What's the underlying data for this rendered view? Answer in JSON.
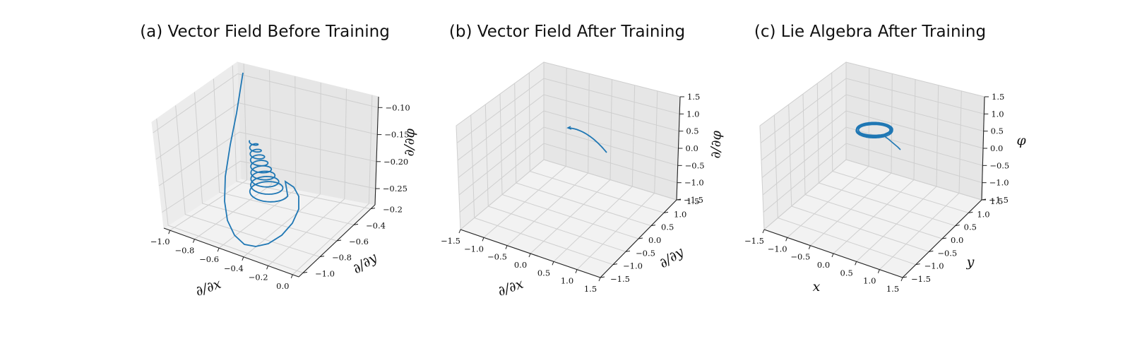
{
  "chart_data": [
    {
      "type": "line3d",
      "title": "(a) Vector Field Before Training",
      "xlabel": "∂/∂x",
      "ylabel": "∂/∂y",
      "zlabel": "∂/∂φ",
      "xticks": [
        "−1.0",
        "−0.8",
        "−0.6",
        "−0.4",
        "−0.2",
        "0.0"
      ],
      "yticks": [
        "−1.0",
        "−0.8",
        "−0.6",
        "−0.4",
        "−0.2"
      ],
      "zticks": [
        "−0.25",
        "−0.20",
        "−0.15",
        "−0.10"
      ],
      "xlim": [
        -1.05,
        0.05
      ],
      "ylim": [
        -1.05,
        -0.15
      ],
      "zlim": [
        -0.28,
        -0.08
      ],
      "grid": true,
      "series_color": "#1f77b4",
      "curve": "spiral trajectory descending from φ≈−0.08 toward φ≈−0.25 around (x≈−0.5, y≈−0.6)"
    },
    {
      "type": "line3d",
      "title": "(b) Vector Field After Training",
      "xlabel": "∂/∂x",
      "ylabel": "∂/∂y",
      "zlabel": "∂/∂φ",
      "xticks": [
        "−1.5",
        "−1.0",
        "−0.5",
        "0.0",
        "0.5",
        "1.0",
        "1.5"
      ],
      "yticks": [
        "−1.5",
        "−1.0",
        "−0.5",
        "0.0",
        "0.5",
        "1.0",
        "1.5"
      ],
      "zticks": [
        "−1.5",
        "−1.0",
        "−0.5",
        "0.0",
        "0.5",
        "1.0",
        "1.5"
      ],
      "xlim": [
        -1.5,
        1.5
      ],
      "ylim": [
        -1.5,
        1.5
      ],
      "zlim": [
        -1.5,
        1.5
      ],
      "grid": true,
      "series_color": "#1f77b4",
      "curve": "short arc near the origin"
    },
    {
      "type": "line3d",
      "title": "(c) Lie Algebra After Training",
      "xlabel": "x",
      "ylabel": "y",
      "zlabel": "φ",
      "xticks": [
        "−1.5",
        "−1.0",
        "−0.5",
        "0.0",
        "0.5",
        "1.0",
        "1.5"
      ],
      "yticks": [
        "−1.5",
        "−1.0",
        "−0.5",
        "0.0",
        "0.5",
        "1.0",
        "1.5"
      ],
      "zticks": [
        "−1.5",
        "−1.0",
        "−0.5",
        "0.0",
        "0.5",
        "1.0",
        "1.5"
      ],
      "xlim": [
        -1.5,
        1.5
      ],
      "ylim": [
        -1.5,
        1.5
      ],
      "zlim": [
        -1.5,
        1.5
      ],
      "grid": true,
      "series_color": "#1f77b4",
      "curve": "closed loops (limit cycle) around φ≈0.7 with short tail"
    }
  ]
}
